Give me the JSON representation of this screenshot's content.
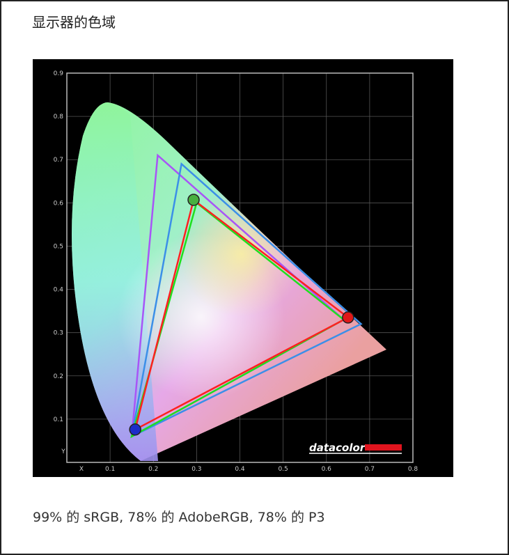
{
  "header": {
    "title": "显示器的色域"
  },
  "chart_data": {
    "type": "chromaticity",
    "xlim": [
      0,
      0.8
    ],
    "ylim": [
      0,
      0.9
    ],
    "xticks": [
      0.1,
      0.2,
      0.3,
      0.4,
      0.5,
      0.6,
      0.7,
      0.8
    ],
    "yticks": [
      0.1,
      0.2,
      0.3,
      0.4,
      0.5,
      0.6,
      0.7,
      0.8,
      0.9
    ],
    "x_label": "X",
    "y_label": "Y",
    "logo": "datacolor",
    "grid": true,
    "series": [
      {
        "color": "#a855f7",
        "x": [
          0.64,
          0.21,
          0.15
        ],
        "y": [
          0.33,
          0.71,
          0.06
        ]
      },
      {
        "color": "#3b8fe8",
        "x": [
          0.68,
          0.265,
          0.15
        ],
        "y": [
          0.32,
          0.69,
          0.06
        ]
      },
      {
        "color": "#1ee01e",
        "x": [
          0.64,
          0.3,
          0.15
        ],
        "y": [
          0.33,
          0.6,
          0.06
        ]
      },
      {
        "color": "#ff2020",
        "x": [
          0.65,
          0.293,
          0.158
        ],
        "y": [
          0.335,
          0.607,
          0.076
        ],
        "markers": true,
        "marker_colors": [
          "#e01818",
          "#48b040",
          "#1c2cc8"
        ]
      }
    ]
  },
  "caption": "99% 的 sRGB, 78% 的 AdobeRGB, 78% 的 P3"
}
